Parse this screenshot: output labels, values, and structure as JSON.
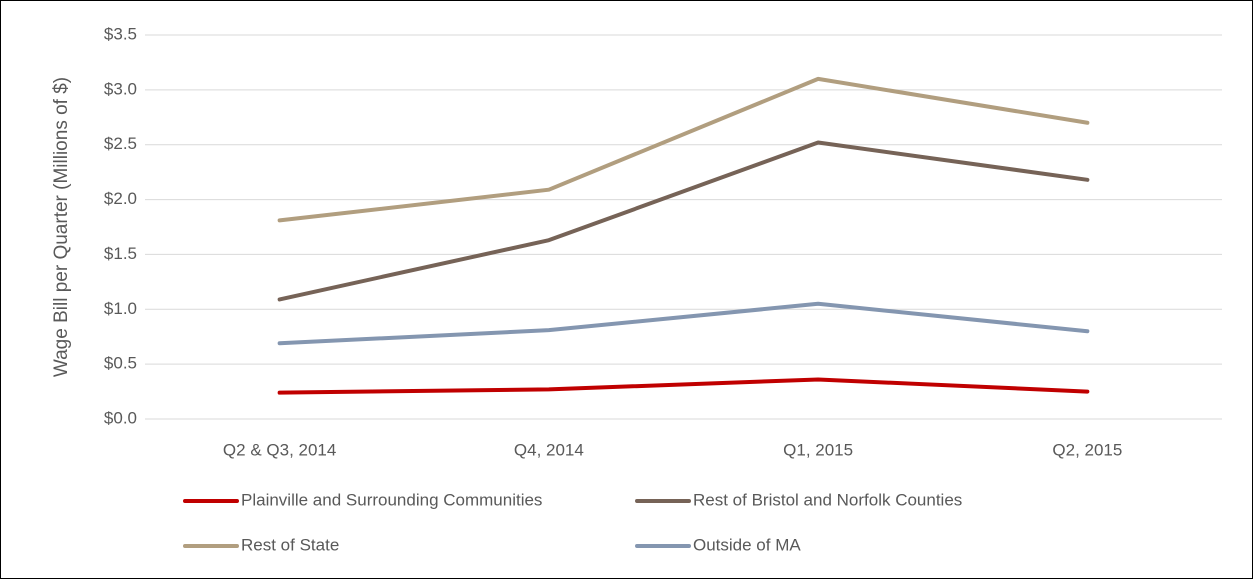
{
  "chart_data": {
    "type": "line",
    "ylabel": "Wage Bill per Quarter (Millions of $)",
    "categories": [
      "Q2 & Q3, 2014",
      "Q4, 2014",
      "Q1, 2015",
      "Q2, 2015"
    ],
    "series": [
      {
        "name": "Plainville and Surrounding Communities",
        "color": "#c00000",
        "values": [
          0.24,
          0.27,
          0.36,
          0.25
        ]
      },
      {
        "name": "Rest of Bristol and Norfolk Counties",
        "color": "#766357",
        "values": [
          1.09,
          1.63,
          2.52,
          2.18
        ]
      },
      {
        "name": "Rest of State",
        "color": "#b19e7f",
        "values": [
          1.81,
          2.09,
          3.1,
          2.7
        ]
      },
      {
        "name": "Outside of MA",
        "color": "#8496b0",
        "values": [
          0.69,
          0.81,
          1.05,
          0.8
        ]
      }
    ],
    "ylim": [
      0,
      3.5
    ],
    "yticks": [
      {
        "value": 0,
        "label": "$0.0"
      },
      {
        "value": 0.5,
        "label": "$0.5"
      },
      {
        "value": 1,
        "label": "$1.0"
      },
      {
        "value": 1.5,
        "label": "$1.5"
      },
      {
        "value": 2,
        "label": "$2.0"
      },
      {
        "value": 2.5,
        "label": "$2.5"
      },
      {
        "value": 3,
        "label": "$3.0"
      },
      {
        "value": 3.5,
        "label": "$3.5"
      }
    ],
    "grid": true,
    "legend": "bottom"
  }
}
